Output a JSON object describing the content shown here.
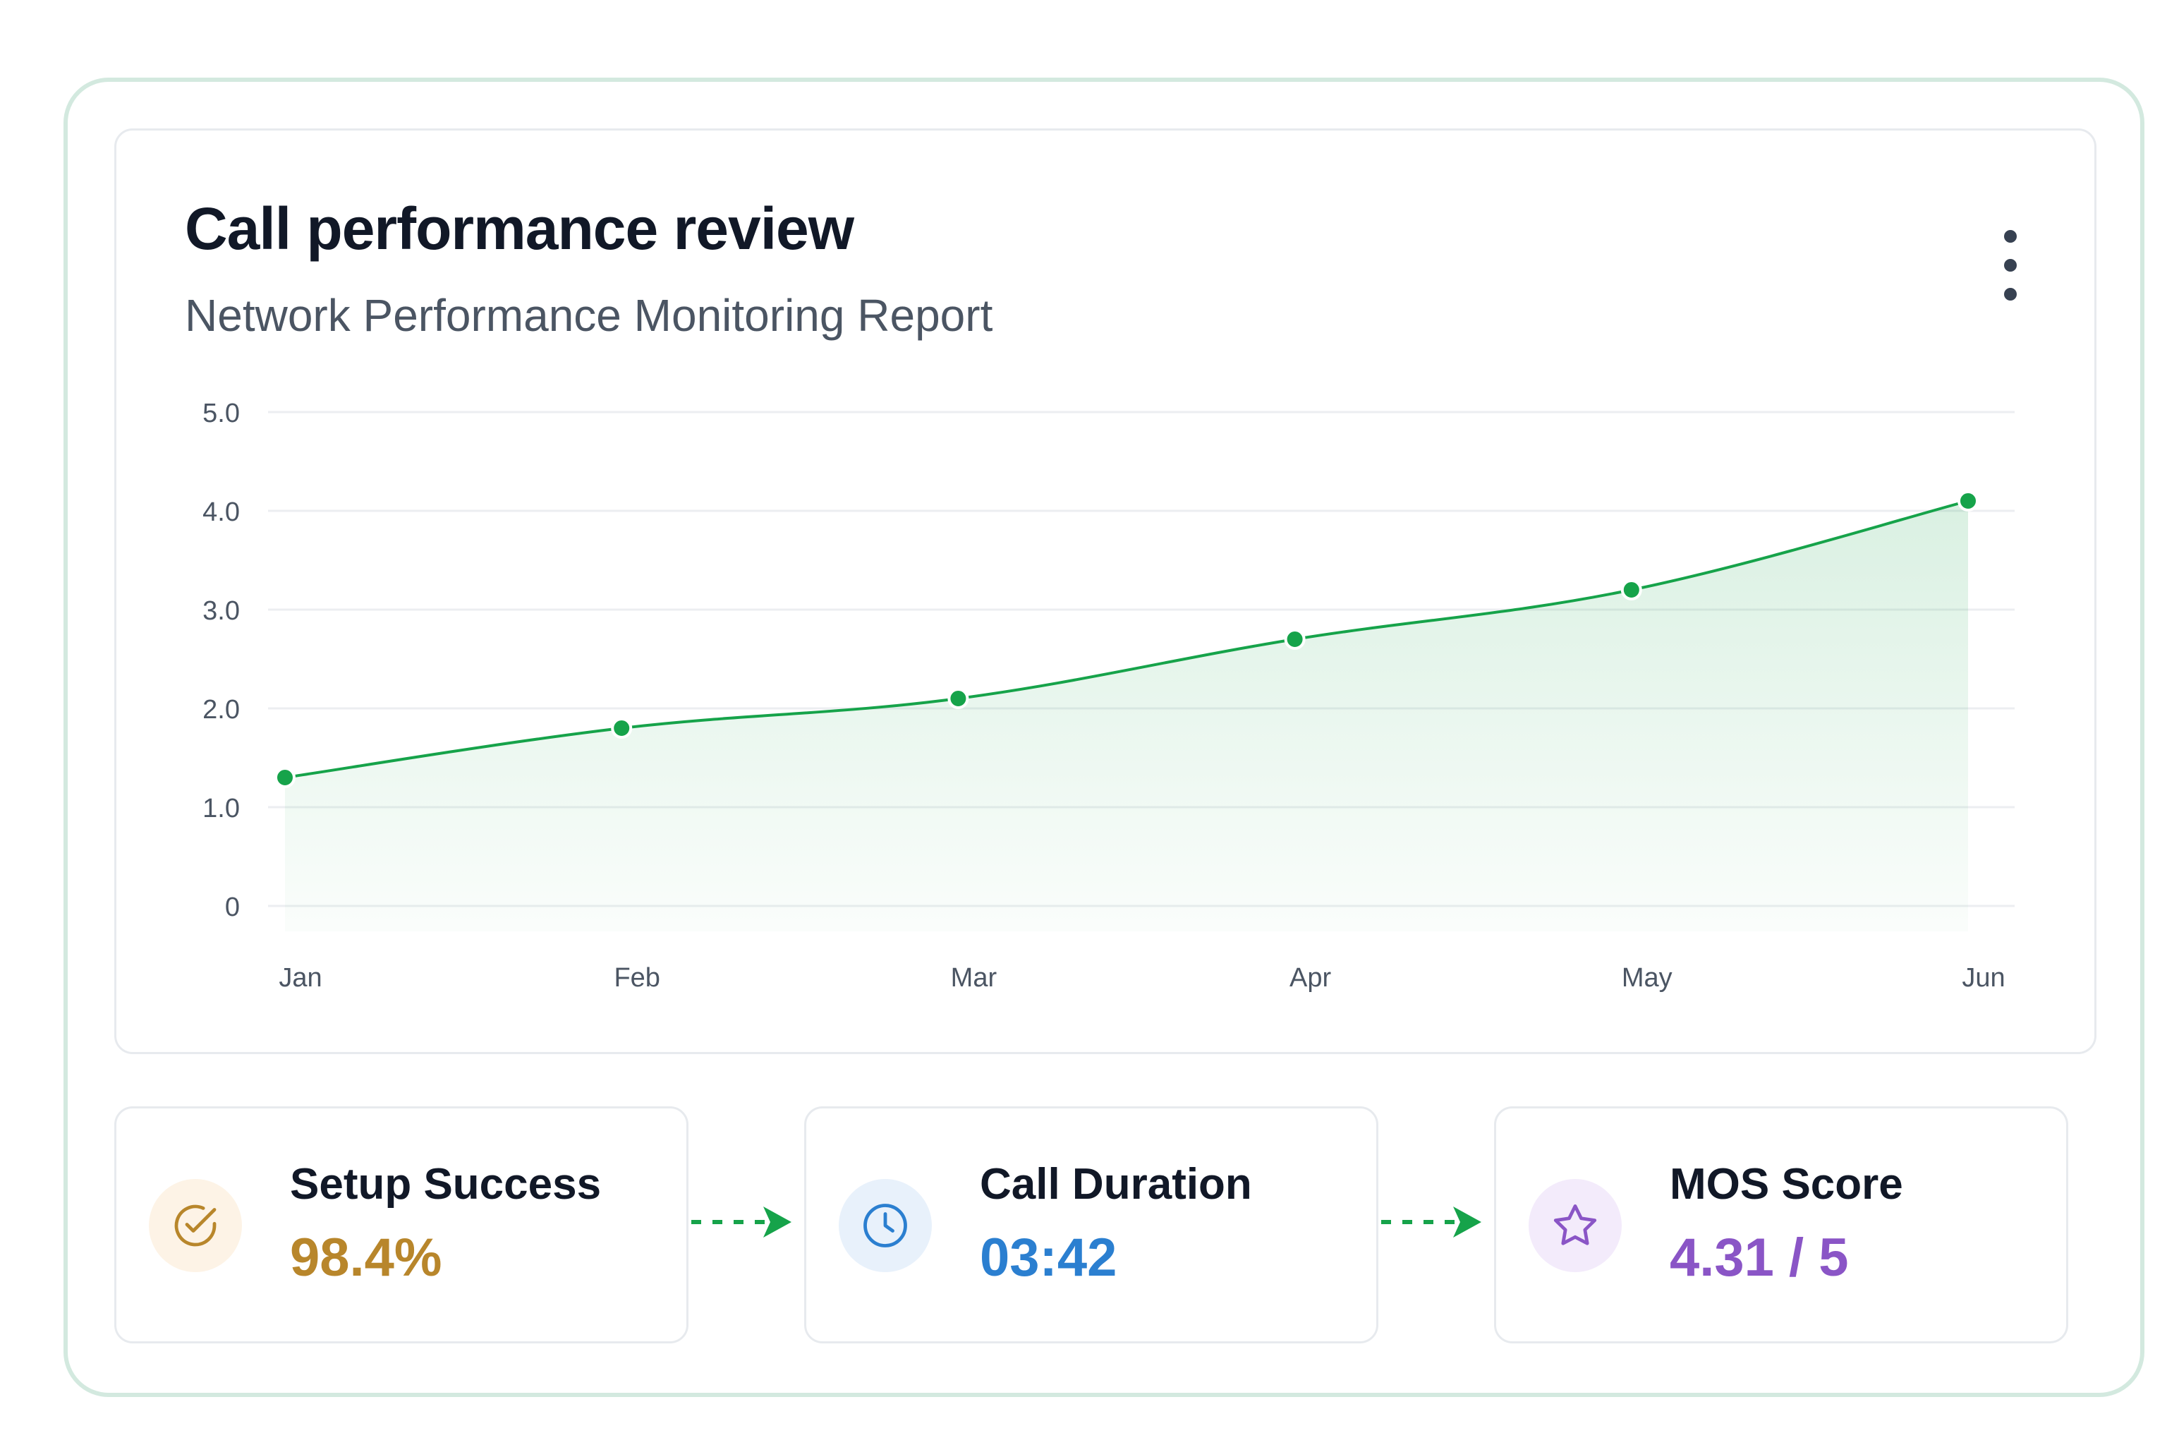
{
  "header": {
    "title": "Call performance review",
    "subtitle": "Network Performance Monitoring Report",
    "menu_icon": "more-vertical-icon"
  },
  "chart_data": {
    "type": "area",
    "categories": [
      "Jan",
      "Feb",
      "Mar",
      "Apr",
      "May",
      "Jun"
    ],
    "series": [
      {
        "values": [
          1.3,
          1.8,
          2.1,
          2.7,
          3.2,
          4.1
        ]
      }
    ],
    "y_ticks": [
      "0",
      "1.0",
      "2.0",
      "3.0",
      "4.0",
      "5.0"
    ],
    "ylim": [
      0,
      5
    ],
    "grid": true,
    "color": "#16a34a",
    "xlabel": "",
    "ylabel": ""
  },
  "stats": [
    {
      "label": "Setup Success",
      "value": "98.4%",
      "icon": "check-circle-icon",
      "color": "#b8862b",
      "bg": "#fdf3e6"
    },
    {
      "label": "Call Duration",
      "value": "03:42",
      "icon": "clock-icon",
      "color": "#2b7fd0",
      "bg": "#e8f1fb"
    },
    {
      "label": "MOS Score",
      "value": "4.31 / 5",
      "icon": "star-icon",
      "color": "#8a55c6",
      "bg": "#f3ebfb"
    }
  ],
  "flow_arrow_color": "#16a34a"
}
